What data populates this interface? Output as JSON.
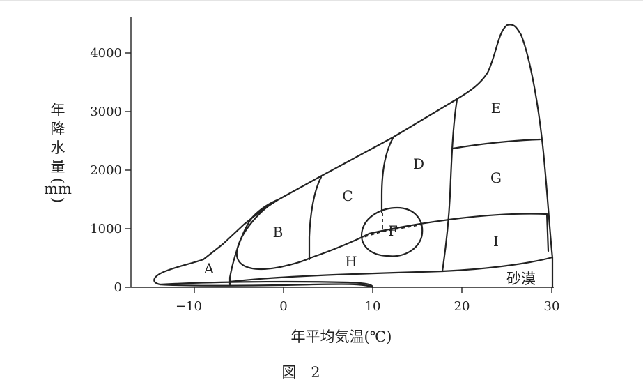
{
  "figure": {
    "caption": "図　2",
    "x_axis": {
      "label": "年平均気温(℃)",
      "ticks": [
        {
          "value": -10,
          "label": "−10"
        },
        {
          "value": 0,
          "label": "0"
        },
        {
          "value": 10,
          "label": "10"
        },
        {
          "value": 20,
          "label": "20"
        },
        {
          "value": 30,
          "label": "30"
        }
      ]
    },
    "y_axis": {
      "label_lines": [
        "年",
        "降",
        "水",
        "量",
        "(",
        "mm",
        ")"
      ],
      "ticks": [
        {
          "value": 0,
          "label": "0"
        },
        {
          "value": 1000,
          "label": "1000"
        },
        {
          "value": 2000,
          "label": "2000"
        },
        {
          "value": 3000,
          "label": "3000"
        },
        {
          "value": 4000,
          "label": "4000"
        }
      ]
    },
    "regions": [
      {
        "id": "A",
        "label": "A"
      },
      {
        "id": "B",
        "label": "B"
      },
      {
        "id": "C",
        "label": "C"
      },
      {
        "id": "D",
        "label": "D"
      },
      {
        "id": "E",
        "label": "E"
      },
      {
        "id": "F",
        "label": "F"
      },
      {
        "id": "G",
        "label": "G"
      },
      {
        "id": "H",
        "label": "H"
      },
      {
        "id": "I",
        "label": "I"
      },
      {
        "id": "desert",
        "label": "砂漠"
      }
    ]
  }
}
